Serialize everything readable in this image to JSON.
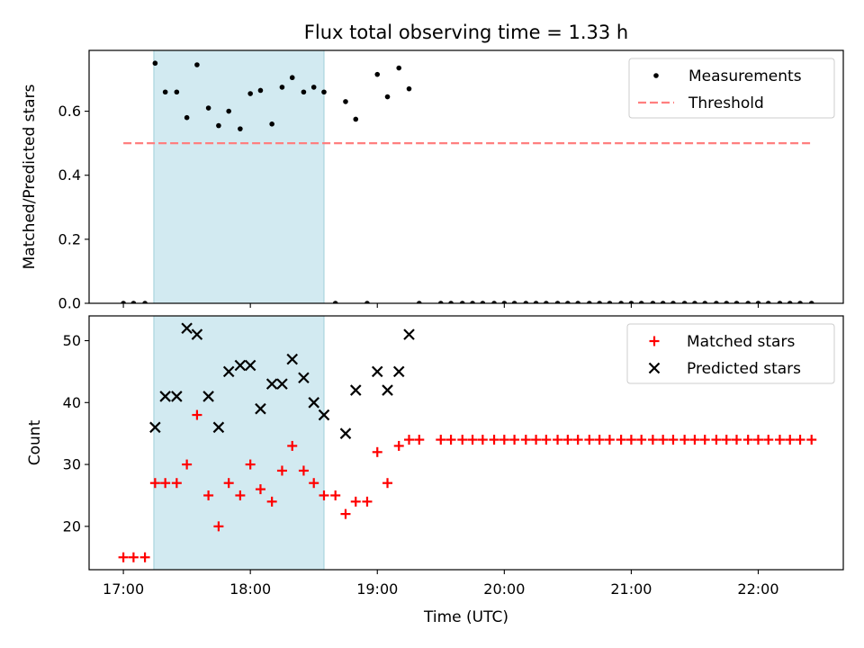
{
  "chart_data": {
    "type": "scatter",
    "title": "Flux total observing time = 1.33 h",
    "xlabel": "Time (UTC)",
    "x_tick_labels": [
      "17:00",
      "18:00",
      "19:00",
      "20:00",
      "21:00",
      "22:00"
    ],
    "x_ticks_hours": [
      17,
      18,
      19,
      20,
      21,
      22
    ],
    "xlim_hours": [
      16.73,
      22.67
    ],
    "observing_window_hours": [
      17.24,
      18.58
    ],
    "colors": {
      "window": "#add8e6",
      "measurements": "#000000",
      "threshold": "#ff7f7f",
      "matched": "#ff0000",
      "predicted": "#000000"
    },
    "panels": [
      {
        "ylabel": "Matched/Predicted stars",
        "ylim": [
          0,
          0.79
        ],
        "y_tick_labels": [
          "0.0",
          "0.2",
          "0.4",
          "0.6"
        ],
        "y_ticks": [
          0,
          0.2,
          0.4,
          0.6
        ],
        "legend_position": "top-right",
        "threshold": {
          "name": "Threshold",
          "value": 0.5,
          "x_range_hours": [
            17.0,
            22.42
          ]
        },
        "series": [
          {
            "name": "Measurements",
            "marker": "dot",
            "points": [
              [
                17.0,
                0
              ],
              [
                17.08,
                0
              ],
              [
                17.17,
                0
              ],
              [
                17.25,
                0.75
              ],
              [
                17.33,
                0.66
              ],
              [
                17.42,
                0.66
              ],
              [
                17.5,
                0.58
              ],
              [
                17.58,
                0.745
              ],
              [
                17.67,
                0.61
              ],
              [
                17.75,
                0.555
              ],
              [
                17.83,
                0.6
              ],
              [
                17.92,
                0.545
              ],
              [
                18.0,
                0.655
              ],
              [
                18.08,
                0.665
              ],
              [
                18.17,
                0.56
              ],
              [
                18.25,
                0.675
              ],
              [
                18.33,
                0.705
              ],
              [
                18.42,
                0.66
              ],
              [
                18.5,
                0.675
              ],
              [
                18.58,
                0.66
              ],
              [
                18.67,
                0
              ],
              [
                18.75,
                0.63
              ],
              [
                18.83,
                0.575
              ],
              [
                18.92,
                0
              ],
              [
                19.0,
                0.715
              ],
              [
                19.08,
                0.645
              ],
              [
                19.17,
                0.735
              ],
              [
                19.25,
                0.67
              ],
              [
                19.33,
                0
              ],
              [
                19.5,
                0
              ],
              [
                19.58,
                0
              ],
              [
                19.67,
                0
              ],
              [
                19.75,
                0
              ],
              [
                19.83,
                0
              ],
              [
                19.92,
                0
              ],
              [
                20.0,
                0
              ],
              [
                20.08,
                0
              ],
              [
                20.17,
                0
              ],
              [
                20.25,
                0
              ],
              [
                20.33,
                0
              ],
              [
                20.42,
                0
              ],
              [
                20.5,
                0
              ],
              [
                20.58,
                0
              ],
              [
                20.67,
                0
              ],
              [
                20.75,
                0
              ],
              [
                20.83,
                0
              ],
              [
                20.92,
                0
              ],
              [
                21.0,
                0
              ],
              [
                21.08,
                0
              ],
              [
                21.17,
                0
              ],
              [
                21.25,
                0
              ],
              [
                21.33,
                0
              ],
              [
                21.42,
                0
              ],
              [
                21.5,
                0
              ],
              [
                21.58,
                0
              ],
              [
                21.67,
                0
              ],
              [
                21.75,
                0
              ],
              [
                21.83,
                0
              ],
              [
                21.92,
                0
              ],
              [
                22.0,
                0
              ],
              [
                22.08,
                0
              ],
              [
                22.17,
                0
              ],
              [
                22.25,
                0
              ],
              [
                22.33,
                0
              ],
              [
                22.42,
                0
              ]
            ]
          }
        ]
      },
      {
        "ylabel": "Count",
        "ylim": [
          13,
          54
        ],
        "y_tick_labels": [
          "20",
          "30",
          "40",
          "50"
        ],
        "y_ticks": [
          20,
          30,
          40,
          50
        ],
        "legend_position": "top-right",
        "series": [
          {
            "name": "Matched stars",
            "marker": "plus",
            "points": [
              [
                17.0,
                15
              ],
              [
                17.08,
                15
              ],
              [
                17.17,
                15
              ],
              [
                17.25,
                27
              ],
              [
                17.33,
                27
              ],
              [
                17.42,
                27
              ],
              [
                17.5,
                30
              ],
              [
                17.58,
                38
              ],
              [
                17.67,
                25
              ],
              [
                17.75,
                20
              ],
              [
                17.83,
                27
              ],
              [
                17.92,
                25
              ],
              [
                18.0,
                30
              ],
              [
                18.08,
                26
              ],
              [
                18.17,
                24
              ],
              [
                18.25,
                29
              ],
              [
                18.33,
                33
              ],
              [
                18.42,
                29
              ],
              [
                18.5,
                27
              ],
              [
                18.58,
                25
              ],
              [
                18.67,
                25
              ],
              [
                18.75,
                22
              ],
              [
                18.83,
                24
              ],
              [
                18.92,
                24
              ],
              [
                19.0,
                32
              ],
              [
                19.08,
                27
              ],
              [
                19.17,
                33
              ],
              [
                19.25,
                34
              ],
              [
                19.33,
                34
              ],
              [
                19.5,
                34
              ],
              [
                19.58,
                34
              ],
              [
                19.67,
                34
              ],
              [
                19.75,
                34
              ],
              [
                19.83,
                34
              ],
              [
                19.92,
                34
              ],
              [
                20.0,
                34
              ],
              [
                20.08,
                34
              ],
              [
                20.17,
                34
              ],
              [
                20.25,
                34
              ],
              [
                20.33,
                34
              ],
              [
                20.42,
                34
              ],
              [
                20.5,
                34
              ],
              [
                20.58,
                34
              ],
              [
                20.67,
                34
              ],
              [
                20.75,
                34
              ],
              [
                20.83,
                34
              ],
              [
                20.92,
                34
              ],
              [
                21.0,
                34
              ],
              [
                21.08,
                34
              ],
              [
                21.17,
                34
              ],
              [
                21.25,
                34
              ],
              [
                21.33,
                34
              ],
              [
                21.42,
                34
              ],
              [
                21.5,
                34
              ],
              [
                21.58,
                34
              ],
              [
                21.67,
                34
              ],
              [
                21.75,
                34
              ],
              [
                21.83,
                34
              ],
              [
                21.92,
                34
              ],
              [
                22.0,
                34
              ],
              [
                22.08,
                34
              ],
              [
                22.17,
                34
              ],
              [
                22.25,
                34
              ],
              [
                22.33,
                34
              ],
              [
                22.42,
                34
              ]
            ]
          },
          {
            "name": "Predicted stars",
            "marker": "x",
            "points": [
              [
                17.25,
                36
              ],
              [
                17.33,
                41
              ],
              [
                17.42,
                41
              ],
              [
                17.5,
                52
              ],
              [
                17.58,
                51
              ],
              [
                17.67,
                41
              ],
              [
                17.75,
                36
              ],
              [
                17.83,
                45
              ],
              [
                17.92,
                46
              ],
              [
                18.0,
                46
              ],
              [
                18.08,
                39
              ],
              [
                18.17,
                43
              ],
              [
                18.25,
                43
              ],
              [
                18.33,
                47
              ],
              [
                18.42,
                44
              ],
              [
                18.5,
                40
              ],
              [
                18.58,
                38
              ],
              [
                18.75,
                35
              ],
              [
                18.83,
                42
              ],
              [
                19.0,
                45
              ],
              [
                19.08,
                42
              ],
              [
                19.17,
                45
              ],
              [
                19.25,
                51
              ]
            ]
          }
        ]
      }
    ]
  }
}
